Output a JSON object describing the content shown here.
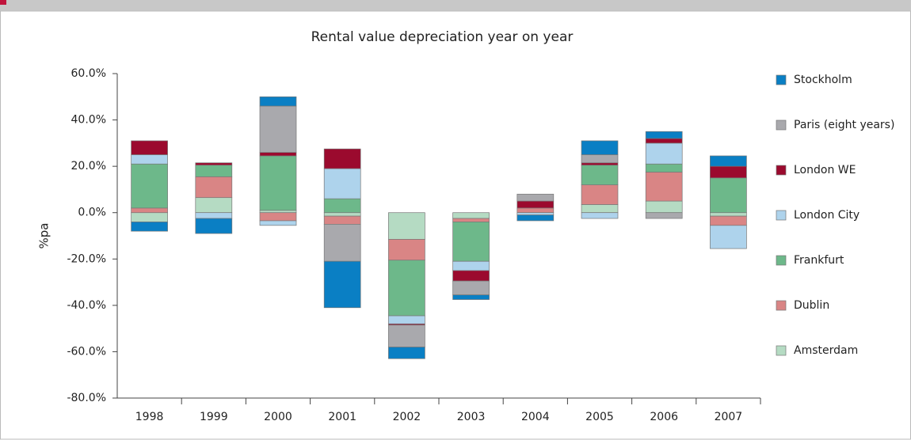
{
  "chart_data": {
    "type": "stacked-bar",
    "title": "Rental value depreciation year on year",
    "y_label": "%pa",
    "categories": [
      "1998",
      "1999",
      "2000",
      "2001",
      "2002",
      "2003",
      "2004",
      "2005",
      "2006",
      "2007"
    ],
    "series": [
      {
        "name": "Stockholm",
        "color": "#0a7fc4",
        "values": [
          -4,
          -6.5,
          4,
          -20,
          -5,
          -2,
          -2.5,
          6,
          3,
          4.5
        ]
      },
      {
        "name": "Paris (eight years)",
        "color": "#a9a9ad",
        "values": [
          0,
          0,
          20,
          -16,
          -9.5,
          -6,
          3,
          3.5,
          -2.5,
          0
        ]
      },
      {
        "name": "London WE",
        "color": "#9b0a2e",
        "values": [
          6,
          1,
          1.5,
          8.5,
          -0.5,
          -4.5,
          3,
          1,
          2,
          5
        ]
      },
      {
        "name": "London City",
        "color": "#aed3ec",
        "values": [
          4,
          -2.5,
          -2,
          13,
          -3.5,
          -4,
          -1,
          -2.5,
          9,
          -10
        ]
      },
      {
        "name": "Frankfurt",
        "color": "#6db88a",
        "values": [
          19,
          5,
          23.5,
          6,
          -24,
          -17,
          0,
          8.5,
          3.5,
          15
        ]
      },
      {
        "name": "Dublin",
        "color": "#d98585",
        "values": [
          2,
          9,
          -3.5,
          -3.5,
          -9,
          -1.5,
          2,
          8.5,
          12.5,
          -4
        ]
      },
      {
        "name": "Amsterdam",
        "color": "#b5dbc3",
        "values": [
          -4,
          6.5,
          1,
          -1.5,
          -11.5,
          -2.5,
          0,
          3.5,
          5,
          -1.5
        ]
      }
    ],
    "ylim": [
      -80,
      60
    ],
    "yticks": [
      {
        "value": -80,
        "label": "-80.0%"
      },
      {
        "value": -60,
        "label": "-60.0%"
      },
      {
        "value": -40,
        "label": "-40.0%"
      },
      {
        "value": -20,
        "label": "-20.0%"
      },
      {
        "value": 0,
        "label": "0.0%"
      },
      {
        "value": 20,
        "label": "20.0%"
      },
      {
        "value": 40,
        "label": "40.0%"
      },
      {
        "value": 60,
        "label": "60.0%"
      }
    ]
  }
}
